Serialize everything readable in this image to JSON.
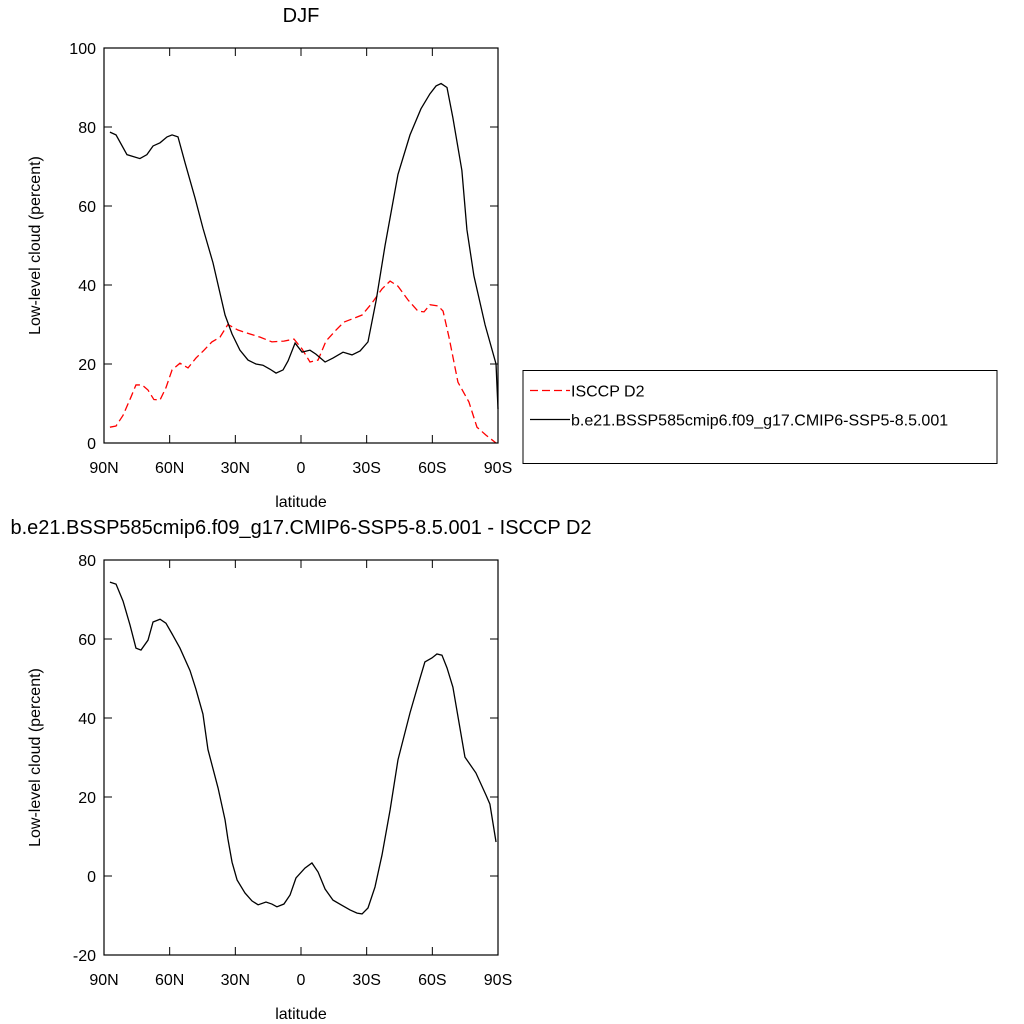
{
  "chart_data": [
    {
      "type": "line",
      "title": "DJF",
      "xlabel": "latitude",
      "ylabel": "Low-level cloud (percent)",
      "xlim": [
        90,
        -90
      ],
      "xticks": [
        {
          "value": 90,
          "label": "90N"
        },
        {
          "value": 60,
          "label": "60N"
        },
        {
          "value": 30,
          "label": "30N"
        },
        0,
        {
          "value": -30,
          "label": "30S"
        },
        {
          "value": -60,
          "label": "60S"
        },
        {
          "value": -90,
          "label": "90S"
        }
      ],
      "ylim": [
        0,
        100
      ],
      "yticks": [
        0,
        20,
        40,
        60,
        80,
        100
      ],
      "legend": "right",
      "series": [
        {
          "name": "ISCCP D2",
          "color": "#ff0000",
          "dash": "dashed",
          "x": [
            87.3,
            84.5,
            81.3,
            77.7,
            75.4,
            72.6,
            69.9,
            67.2,
            64.4,
            61.7,
            58.9,
            55.3,
            51.6,
            48.0,
            44.3,
            40.7,
            37.0,
            33.4,
            28.8,
            23.3,
            18.7,
            13.3,
            7.8,
            3.2,
            -0.5,
            -4.1,
            -7.8,
            -11.4,
            -16.0,
            -19.6,
            -23.3,
            -27.9,
            -32.4,
            -37.0,
            -40.7,
            -44.3,
            -48.9,
            -53.4,
            -56.2,
            -58.9,
            -62.6,
            -64.9,
            -67.6,
            -71.7,
            -76.7,
            -80.4,
            -84.5,
            -89.1
          ],
          "values": [
            4,
            4.3,
            7,
            11.6,
            14.7,
            14.7,
            13.4,
            11,
            10.9,
            14,
            18.5,
            20.2,
            19,
            21.5,
            23.5,
            25.6,
            26.8,
            30,
            28.6,
            27.6,
            26.8,
            25.6,
            25.8,
            26.3,
            23.8,
            20.5,
            21,
            25.8,
            28.6,
            30.6,
            31.4,
            32.4,
            35.4,
            39,
            41,
            39.7,
            36.2,
            33.4,
            33.2,
            35,
            34.7,
            33.4,
            26.8,
            15.4,
            10.4,
            4,
            2,
            0
          ]
        },
        {
          "name": "b.e21.BSSP585cmip6.f09_g17.CMIP6-SSP5-8.5.001",
          "color": "#000000",
          "dash": "solid",
          "x": [
            87.3,
            84.5,
            79.5,
            73.6,
            70.4,
            67.6,
            64.4,
            61.2,
            58.9,
            56.2,
            53.0,
            48.4,
            44.8,
            40.2,
            34.7,
            31.5,
            27.9,
            24.2,
            20.6,
            17.4,
            14.2,
            11.4,
            8.2,
            5.9,
            2.7,
            -0.5,
            -4.1,
            -6.8,
            -11.0,
            -14.6,
            -19.2,
            -23.3,
            -27.0,
            -30.6,
            -34.3,
            -38.4,
            -44.3,
            -49.8,
            -54.8,
            -58.9,
            -61.7,
            -64.0,
            -66.7,
            -69.4,
            -73.5,
            -75.8,
            -79.0,
            -84.1,
            -89.1,
            -90.0
          ],
          "values": [
            78.7,
            78,
            73,
            72,
            73,
            75.2,
            76,
            77.5,
            78,
            77.5,
            71,
            62,
            54.4,
            45.6,
            32.4,
            27.6,
            23.5,
            21,
            20,
            19.7,
            18.7,
            17.7,
            18.5,
            20.8,
            25.3,
            23,
            23.5,
            22.5,
            20.5,
            21.5,
            23,
            22.3,
            23.3,
            25.6,
            36,
            50,
            68,
            78,
            84.6,
            88.4,
            90.4,
            91,
            90,
            82.3,
            69,
            54,
            42.3,
            29.9,
            20,
            8.6
          ]
        }
      ]
    },
    {
      "type": "line",
      "title": "b.e21.BSSP585cmip6.f09_g17.CMIP6-SSP5-8.5.001 - ISCCP D2",
      "xlabel": "latitude",
      "ylabel": "Low-level cloud (percent)",
      "xlim": [
        90,
        -90
      ],
      "xticks": [
        {
          "value": 90,
          "label": "90N"
        },
        {
          "value": 60,
          "label": "60N"
        },
        {
          "value": 30,
          "label": "30N"
        },
        0,
        {
          "value": -30,
          "label": "30S"
        },
        {
          "value": -60,
          "label": "60S"
        },
        {
          "value": -90,
          "label": "90S"
        }
      ],
      "ylim": [
        -20,
        80
      ],
      "yticks": [
        -20,
        0,
        20,
        40,
        60,
        80
      ],
      "series": [
        {
          "color": "#000000",
          "dash": "solid",
          "x": [
            87.3,
            84.5,
            81.3,
            78.1,
            75.4,
            73.1,
            69.9,
            67.6,
            64.4,
            61.7,
            58.9,
            55.3,
            50.7,
            48.0,
            44.8,
            42.5,
            37.9,
            34.7,
            33.4,
            31.5,
            29.2,
            25.6,
            22.4,
            19.6,
            16.0,
            13.3,
            11.0,
            7.8,
            5.0,
            2.3,
            -1.8,
            -5.0,
            -7.8,
            -11.0,
            -14.6,
            -18.3,
            -22.4,
            -25.6,
            -27.9,
            -30.6,
            -33.8,
            -37.0,
            -40.7,
            -44.3,
            -49.8,
            -54.4,
            -56.6,
            -59.8,
            -62.1,
            -64.4,
            -66.7,
            -69.4,
            -74.9,
            -79.9,
            -84.5,
            -86.3,
            -89.1
          ],
          "values": [
            74.4,
            73.9,
            69.6,
            63.5,
            57.7,
            57.2,
            59.7,
            64.3,
            65,
            64,
            61.3,
            57.7,
            52,
            47.3,
            41,
            32,
            22.3,
            14.2,
            9.4,
            3.5,
            -1,
            -4.3,
            -6.3,
            -7.3,
            -6.6,
            -7.1,
            -7.8,
            -7.1,
            -4.8,
            -0.5,
            2,
            3.3,
            1,
            -3.3,
            -6.1,
            -7.3,
            -8.6,
            -9.4,
            -9.6,
            -8.1,
            -2.8,
            5.3,
            16.7,
            29.4,
            41.3,
            50.1,
            54.2,
            55.2,
            56.2,
            55.9,
            52.7,
            47.8,
            30.1,
            26.1,
            20.5,
            18.2,
            8.6
          ]
        }
      ]
    }
  ]
}
